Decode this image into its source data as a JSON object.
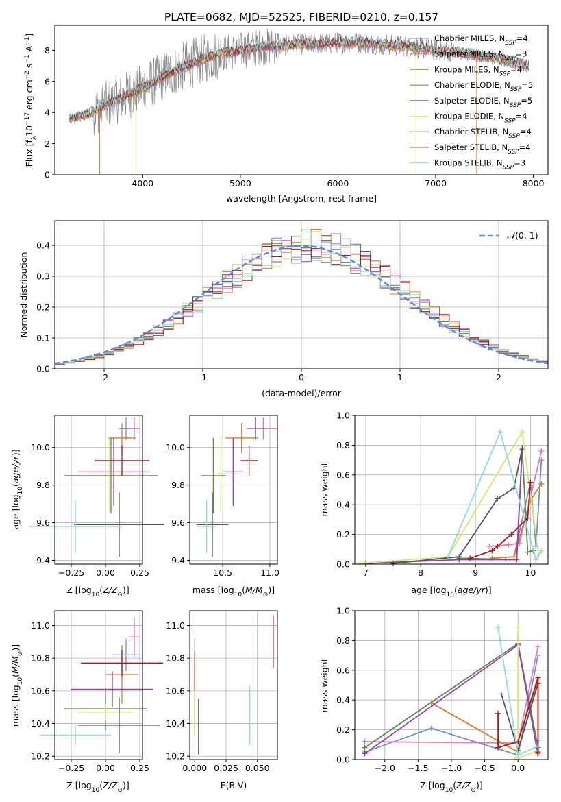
{
  "chart_data": [
    {
      "id": "spectrum",
      "type": "line",
      "title": "PLATE=0682, MJD=52525, FIBERID=0210, z=0.157",
      "xlabel": "wavelength [Angstrom, rest frame]",
      "ylabel": "Flux [f_λ 10^-17 erg cm^-2 s^-1 A^-1]",
      "xlim": [
        3100,
        8150
      ],
      "ylim": [
        0,
        9.6
      ],
      "xticks": [
        4000,
        5000,
        6000,
        7000,
        8000
      ],
      "yticks": [
        0,
        2,
        4,
        6,
        8
      ],
      "grid": false,
      "legend_position": "right",
      "data_envelope": {
        "x": [
          3250,
          3400,
          3600,
          3800,
          4000,
          4200,
          4400,
          4600,
          4800,
          5000,
          5200,
          5400,
          5600,
          5800,
          6000,
          6200,
          6400,
          6600,
          6800,
          7000,
          7200,
          7400,
          7600,
          7800,
          7950
        ],
        "y": [
          3.6,
          3.8,
          4.4,
          5.0,
          5.6,
          6.3,
          6.9,
          7.4,
          7.8,
          8.0,
          8.2,
          8.3,
          8.4,
          8.4,
          8.5,
          8.5,
          8.4,
          8.3,
          8.2,
          8.0,
          7.9,
          7.7,
          7.5,
          7.2,
          7.0
        ]
      },
      "series": [
        {
          "name": "Chabrier MILES, N_SSP=4",
          "color": "#6d8fd8"
        },
        {
          "name": "Salpeter MILES, N_SSP=3",
          "color": "#e87aa8"
        },
        {
          "name": "Kroupa MILES, N_SSP=4",
          "color": "#e0792a"
        },
        {
          "name": "Chabrier ELODIE, N_SSP=5",
          "color": "#5a8a4a"
        },
        {
          "name": "Salpeter ELODIE, N_SSP=5",
          "color": "#9b3bb0"
        },
        {
          "name": "Kroupa ELODIE, N_SSP=4",
          "color": "#d4e86a"
        },
        {
          "name": "Chabrier STELIB, N_SSP=4",
          "color": "#555555"
        },
        {
          "name": "Salpeter STELIB, N_SSP=4",
          "color": "#b01818"
        },
        {
          "name": "Kroupa STELIB, N_SSP=3",
          "color": "#8ddbe0"
        }
      ]
    },
    {
      "id": "residuals",
      "type": "histogram",
      "xlabel": "(data-model)/error",
      "ylabel": "Normed distribution",
      "xlim": [
        -2.5,
        2.5
      ],
      "ylim": [
        0,
        0.48
      ],
      "xticks": [
        -2,
        -1,
        0,
        1,
        2
      ],
      "yticks": [
        0.0,
        0.1,
        0.2,
        0.3,
        0.4
      ],
      "grid": true,
      "legend_label": "𝒩(0,1)",
      "legend_position": "top-right",
      "reference_curve": "normal(0,1)"
    },
    {
      "id": "age_vs_Z",
      "type": "errorbar",
      "xlabel": "Z [log10(Z/Z☉)]",
      "ylabel": "age [log10(age/yr)]",
      "xlim": [
        -0.37,
        0.27
      ],
      "ylim": [
        9.38,
        10.17
      ],
      "xticks": [
        -0.25,
        0.0,
        0.25
      ],
      "xtick_labels": [
        "−0.25",
        "0.00",
        "0.25"
      ],
      "yticks": [
        9.4,
        9.6,
        9.8,
        10.0
      ],
      "grid": true,
      "points": [
        {
          "x": 0.15,
          "xerr": 0.05,
          "y": 10.1,
          "yerr": 0.06
        },
        {
          "x": 0.21,
          "xerr": 0.04,
          "y": 10.1,
          "yerr": 0.06
        },
        {
          "x": 0.12,
          "xerr": 0.1,
          "y": 10.05,
          "yerr": 0.08
        },
        {
          "x": 0.04,
          "xerr": 0.34,
          "y": 9.85,
          "yerr": 0.2
        },
        {
          "x": 0.06,
          "xerr": 0.26,
          "y": 9.87,
          "yerr": 0.18
        },
        {
          "x": 0.03,
          "xerr": 0.15,
          "y": 9.86,
          "yerr": 0.2
        },
        {
          "x": 0.1,
          "xerr": 0.33,
          "y": 9.59,
          "yerr": 0.17
        },
        {
          "x": 0.12,
          "xerr": 0.2,
          "y": 9.93,
          "yerr": 0.08
        },
        {
          "x": -0.22,
          "xerr": 0.34,
          "y": 9.58,
          "yerr": 0.14
        }
      ]
    },
    {
      "id": "age_vs_mass",
      "type": "errorbar",
      "xlabel": "mass [log10(M/M☉)]",
      "ylabel": "",
      "xlim": [
        10.15,
        11.08
      ],
      "ylim": [
        9.38,
        10.17
      ],
      "xticks": [
        10.5,
        11.0
      ],
      "yticks": [
        9.4,
        9.6,
        9.8,
        10.0
      ],
      "grid": true,
      "points": [
        {
          "x": 10.85,
          "xerr": 0.1,
          "y": 10.1,
          "yerr": 0.06
        },
        {
          "x": 10.93,
          "xerr": 0.15,
          "y": 10.1,
          "yerr": 0.06
        },
        {
          "x": 10.7,
          "xerr": 0.17,
          "y": 10.05,
          "yerr": 0.08
        },
        {
          "x": 10.4,
          "xerr": 0.13,
          "y": 9.85,
          "yerr": 0.2
        },
        {
          "x": 10.61,
          "xerr": 0.11,
          "y": 9.87,
          "yerr": 0.18
        },
        {
          "x": 10.48,
          "xerr": 0.04,
          "y": 9.86,
          "yerr": 0.2
        },
        {
          "x": 10.39,
          "xerr": 0.17,
          "y": 9.59,
          "yerr": 0.17
        },
        {
          "x": 10.78,
          "xerr": 0.09,
          "y": 9.93,
          "yerr": 0.08
        },
        {
          "x": 10.33,
          "xerr": 0.1,
          "y": 9.58,
          "yerr": 0.14
        }
      ]
    },
    {
      "id": "weight_vs_age",
      "type": "line",
      "xlabel": "age [log10(age/yr)]",
      "ylabel": "mass weight",
      "xlim": [
        6.8,
        10.32
      ],
      "ylim": [
        0,
        1.0
      ],
      "xticks": [
        7,
        8,
        9,
        10
      ],
      "yticks": [
        0.0,
        0.2,
        0.4,
        0.6,
        0.8,
        1.0
      ],
      "grid": true,
      "series": [
        {
          "x": [
            9.7,
            10.0,
            10.1,
            10.2
          ],
          "y": [
            0.05,
            0.55,
            0.12,
            0.7
          ]
        },
        {
          "x": [
            9.25,
            9.6,
            9.8,
            10.2
          ],
          "y": [
            0.12,
            0.13,
            0.14,
            0.76
          ]
        },
        {
          "x": [
            9.3,
            9.7,
            10.0,
            10.2
          ],
          "y": [
            0.04,
            0.05,
            0.43,
            0.54
          ]
        },
        {
          "x": [
            8.7,
            9.75,
            9.85,
            9.95,
            10.05
          ],
          "y": [
            0.04,
            0.03,
            0.78,
            0.08,
            0.09
          ]
        },
        {
          "x": [
            7.0,
            8.7,
            9.55,
            9.75,
            9.85
          ],
          "y": [
            0.005,
            0.03,
            0.03,
            0.03,
            0.77
          ]
        },
        {
          "x": [
            6.9,
            8.5,
            9.85,
            10.15
          ],
          "y": [
            0.005,
            0.05,
            0.89,
            0.06
          ]
        },
        {
          "x": [
            7.5,
            8.7,
            9.4,
            9.7,
            9.85
          ],
          "y": [
            0.005,
            0.05,
            0.44,
            0.51,
            0.78
          ]
        },
        {
          "x": [
            8.9,
            9.3,
            9.4,
            9.65,
            9.95,
            10.0
          ],
          "y": [
            0.04,
            0.09,
            0.12,
            0.2,
            0.31,
            0.55
          ]
        },
        {
          "x": [
            8.5,
            9.45,
            10.1,
            10.2
          ],
          "y": [
            0.05,
            0.89,
            0.03,
            0.09
          ]
        }
      ]
    },
    {
      "id": "mass_vs_Z",
      "type": "errorbar",
      "xlabel": "Z [log10(Z/Z☉)]",
      "ylabel": "mass [log10(M/M☉)]",
      "xlim": [
        -0.37,
        0.27
      ],
      "ylim": [
        10.18,
        11.09
      ],
      "xticks": [
        -0.25,
        0.0,
        0.25
      ],
      "xtick_labels": [
        "−0.25",
        "0.00",
        "0.25"
      ],
      "yticks": [
        10.2,
        10.4,
        10.6,
        10.8,
        11.0
      ],
      "grid": true,
      "points": [
        {
          "x": 0.15,
          "xerr": 0.1,
          "y": 10.82,
          "yerr": 0.1
        },
        {
          "x": 0.21,
          "xerr": 0.04,
          "y": 10.93,
          "yerr": 0.12
        },
        {
          "x": 0.12,
          "xerr": 0.12,
          "y": 10.7,
          "yerr": 0.18
        },
        {
          "x": 0.0,
          "xerr": 0.3,
          "y": 10.49,
          "yerr": 0.13
        },
        {
          "x": 0.05,
          "xerr": 0.3,
          "y": 10.61,
          "yerr": 0.11
        },
        {
          "x": 0.0,
          "xerr": 0.2,
          "y": 10.47,
          "yerr": 0.05
        },
        {
          "x": 0.1,
          "xerr": 0.3,
          "y": 10.39,
          "yerr": 0.17
        },
        {
          "x": 0.12,
          "xerr": 0.3,
          "y": 10.77,
          "yerr": 0.08
        },
        {
          "x": -0.22,
          "xerr": 0.26,
          "y": 10.33,
          "yerr": 0.06
        }
      ]
    },
    {
      "id": "mass_vs_ebv",
      "type": "errorbar",
      "xlabel": "E(B-V)",
      "ylabel": "",
      "xlim": [
        -0.004,
        0.066
      ],
      "ylim": [
        10.18,
        11.09
      ],
      "xticks": [
        0.0,
        0.025,
        0.05
      ],
      "xtick_labels": [
        "0.000",
        "0.025",
        "0.050"
      ],
      "yticks": [
        10.2,
        10.4,
        10.6,
        10.8,
        11.0
      ],
      "grid": true,
      "points": [
        {
          "x": 0.0,
          "y": 10.82,
          "yerr": 0.1
        },
        {
          "x": 0.063,
          "y": 10.9,
          "yerr": 0.16
        },
        {
          "x": 0.0,
          "y": 10.7,
          "yerr": 0.12
        },
        {
          "x": 0.0,
          "y": 10.49,
          "yerr": 0.16
        },
        {
          "x": 0.0,
          "y": 10.61,
          "yerr": 0.11
        },
        {
          "x": 0.0,
          "y": 10.47,
          "yerr": 0.14
        },
        {
          "x": 0.003,
          "y": 10.38,
          "yerr": 0.17
        },
        {
          "x": 0.0,
          "y": 10.72,
          "yerr": 0.12
        },
        {
          "x": 0.044,
          "y": 10.45,
          "yerr": 0.18
        }
      ]
    },
    {
      "id": "weight_vs_Z",
      "type": "line",
      "xlabel": "Z [log10(Z/Z☉)]",
      "ylabel": "mass weight",
      "xlim": [
        -2.45,
        0.45
      ],
      "ylim": [
        0,
        1.0
      ],
      "xticks": [
        -2.0,
        -1.5,
        -1.0,
        -0.5,
        0.0
      ],
      "xtick_labels": [
        "−2.0",
        "−1.5",
        "−1.0",
        "−0.5",
        "0.0"
      ],
      "yticks": [
        0.0,
        0.2,
        0.4,
        0.6,
        0.8,
        1.0
      ],
      "grid": true,
      "series": [
        {
          "x": [
            -2.3,
            -1.3,
            0.0,
            0.3
          ],
          "y": [
            0.05,
            0.21,
            0.03,
            0.7
          ]
        },
        {
          "x": [
            -2.3,
            0.0,
            0.3
          ],
          "y": [
            0.12,
            0.11,
            0.76
          ]
        },
        {
          "x": [
            -1.3,
            0.0,
            0.3,
            0.3
          ],
          "y": [
            0.38,
            0.05,
            0.54,
            0.04
          ]
        },
        {
          "x": [
            -2.3,
            0.0,
            0.3,
            0.3
          ],
          "y": [
            0.08,
            0.78,
            0.08,
            0.09
          ]
        },
        {
          "x": [
            -2.3,
            0.0,
            0.3,
            0.3
          ],
          "y": [
            0.04,
            0.77,
            0.03,
            0.13
          ]
        },
        {
          "x": [
            0.0,
            0.0,
            -0.05,
            0.3
          ],
          "y": [
            0.89,
            0.05,
            0.0,
            0.06
          ]
        },
        {
          "x": [
            -0.25,
            0.0,
            0.3,
            0.3
          ],
          "y": [
            0.44,
            0.06,
            0.51,
            0.05
          ]
        },
        {
          "x": [
            -0.3,
            -0.3,
            0.0,
            0.3,
            0.3
          ],
          "y": [
            0.31,
            0.08,
            0.12,
            0.55,
            0.05
          ]
        },
        {
          "x": [
            -0.3,
            0.0,
            0.3
          ],
          "y": [
            0.89,
            0.03,
            0.09
          ]
        }
      ]
    }
  ]
}
